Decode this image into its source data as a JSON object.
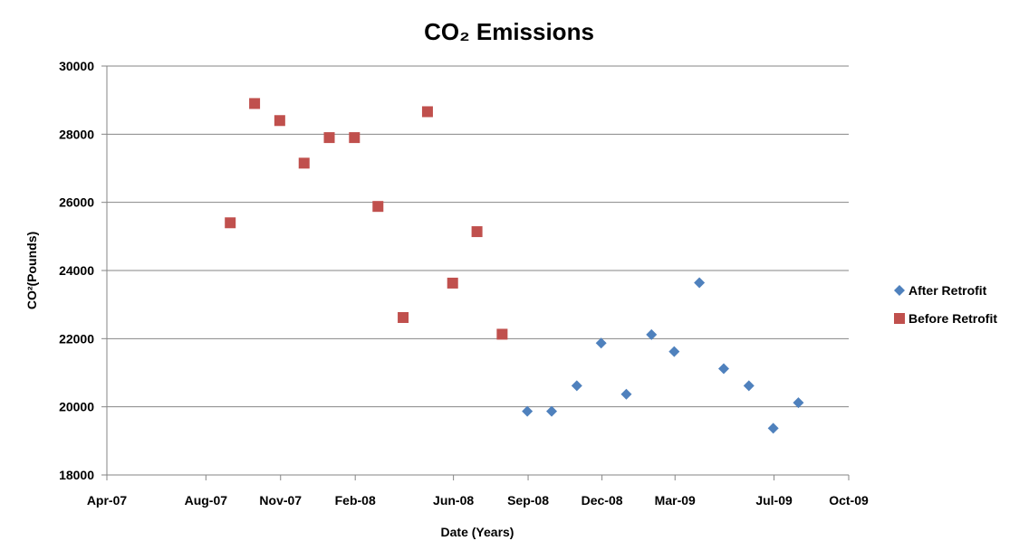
{
  "chart_data": {
    "type": "scatter",
    "title": "CO₂ Emissions",
    "xlabel": "Date (Years)",
    "ylabel": "CO²(Pounds)",
    "ylim": [
      18000,
      30000
    ],
    "yticks": [
      "18000",
      "20000",
      "22000",
      "24000",
      "26000",
      "28000",
      "30000"
    ],
    "xlim": [
      "2007-04-01",
      "2009-10-01"
    ],
    "xticks": [
      {
        "date": "2007-04-01",
        "label": "Apr-07"
      },
      {
        "date": "2007-08-01",
        "label": "Aug-07"
      },
      {
        "date": "2007-11-01",
        "label": "Nov-07"
      },
      {
        "date": "2008-02-01",
        "label": "Feb-08"
      },
      {
        "date": "2008-06-01",
        "label": "Jun-08"
      },
      {
        "date": "2008-09-01",
        "label": "Sep-08"
      },
      {
        "date": "2008-12-01",
        "label": "Dec-08"
      },
      {
        "date": "2009-03-01",
        "label": "Mar-09"
      },
      {
        "date": "2009-07-01",
        "label": "Jul-09"
      },
      {
        "date": "2009-10-01",
        "label": "Oct-09"
      }
    ],
    "grid": true,
    "legend_position": "right",
    "series": [
      {
        "name": "After Retrofit",
        "marker": "diamond",
        "color": "#4f81bd",
        "points": [
          {
            "x": "2008-08-31",
            "y": 19870
          },
          {
            "x": "2008-09-30",
            "y": 19870
          },
          {
            "x": "2008-10-31",
            "y": 20620
          },
          {
            "x": "2008-11-30",
            "y": 21870
          },
          {
            "x": "2008-12-31",
            "y": 20370
          },
          {
            "x": "2009-01-31",
            "y": 22120
          },
          {
            "x": "2009-02-28",
            "y": 21620
          },
          {
            "x": "2009-03-31",
            "y": 23640
          },
          {
            "x": "2009-04-30",
            "y": 21120
          },
          {
            "x": "2009-05-31",
            "y": 20620
          },
          {
            "x": "2009-06-30",
            "y": 19370
          },
          {
            "x": "2009-07-31",
            "y": 20120
          }
        ]
      },
      {
        "name": "Before Retrofit",
        "marker": "square",
        "color": "#c0504d",
        "points": [
          {
            "x": "2007-08-31",
            "y": 25400
          },
          {
            "x": "2007-09-30",
            "y": 28900
          },
          {
            "x": "2007-10-31",
            "y": 28400
          },
          {
            "x": "2007-11-30",
            "y": 27150
          },
          {
            "x": "2007-12-31",
            "y": 27900
          },
          {
            "x": "2008-01-31",
            "y": 27900
          },
          {
            "x": "2008-02-29",
            "y": 25880
          },
          {
            "x": "2008-03-31",
            "y": 22620
          },
          {
            "x": "2008-04-30",
            "y": 28660
          },
          {
            "x": "2008-05-31",
            "y": 23630
          },
          {
            "x": "2008-06-30",
            "y": 25140
          },
          {
            "x": "2008-07-31",
            "y": 22130
          }
        ]
      }
    ]
  }
}
